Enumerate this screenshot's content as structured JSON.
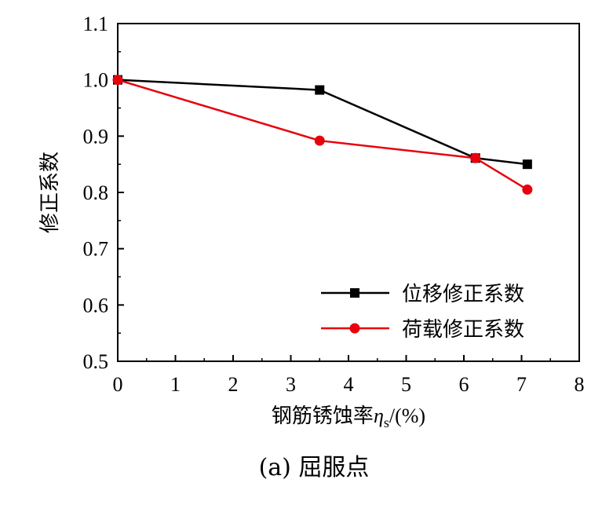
{
  "chart_data": {
    "type": "line",
    "xlabel": "钢筋锈蚀率",
    "xlabel_symbol": "η",
    "xlabel_subscript": "s",
    "xlabel_unit": "/(%)",
    "ylabel": "修正系数",
    "caption": "(a)  屈服点",
    "xlim": [
      0,
      8
    ],
    "ylim": [
      0.5,
      1.1
    ],
    "xticks": [
      0,
      1,
      2,
      3,
      4,
      5,
      6,
      7,
      8
    ],
    "yticks": [
      0.5,
      0.6,
      0.7,
      0.8,
      0.9,
      1.0,
      1.1
    ],
    "ytick_labels": [
      "0.5",
      "0.6",
      "0.7",
      "0.8",
      "0.9",
      "1.0",
      "1.1"
    ],
    "legend_position": "bottom-right",
    "series": [
      {
        "name": "位移修正系数",
        "color": "#000000",
        "marker": "square",
        "x": [
          0,
          3.5,
          6.2,
          7.1
        ],
        "y": [
          1.0,
          0.982,
          0.861,
          0.85
        ]
      },
      {
        "name": "荷载修正系数",
        "color": "#e8000b",
        "marker": "circle",
        "x": [
          0,
          3.5,
          6.2,
          7.1
        ],
        "y": [
          1.0,
          0.892,
          0.861,
          0.805
        ]
      }
    ]
  }
}
